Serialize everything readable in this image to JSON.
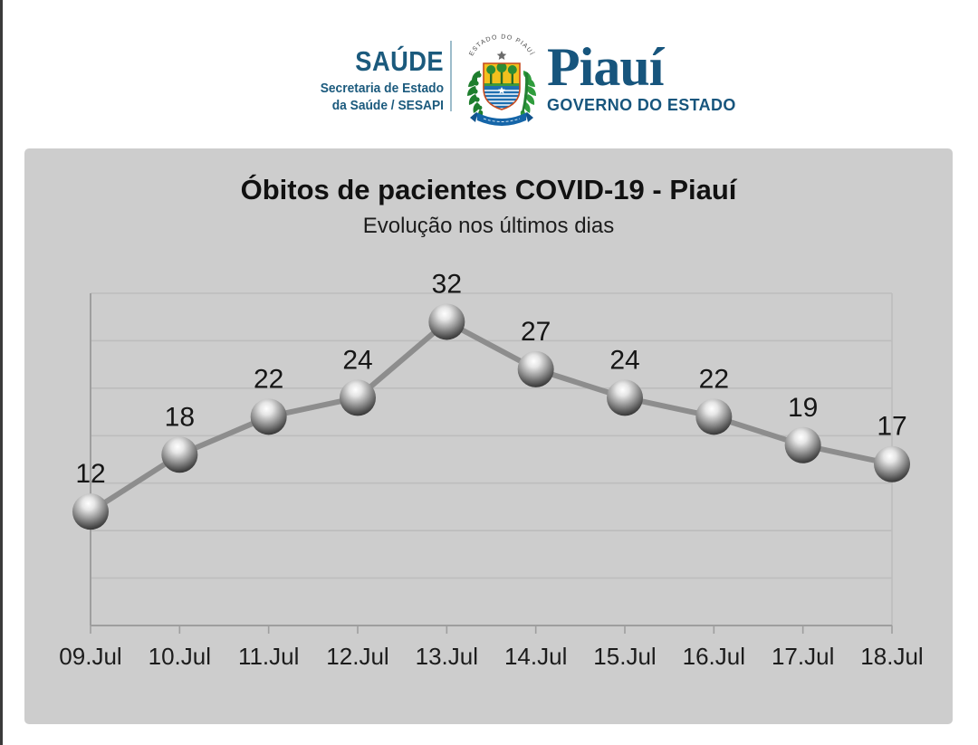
{
  "page": {
    "background": "#ffffff",
    "left_edge_color": "#3a3a3a",
    "panel_background": "#cdcdcd"
  },
  "header": {
    "saude": {
      "title": "SAÚDE",
      "line1": "Secretaria de Estado",
      "line2": "da Saúde / SESAPI",
      "color": "#1b5a7d"
    },
    "crest": {
      "arc_text": "ESTADO DO PIAUÍ"
    },
    "piaui": {
      "name": "Piauí",
      "subtitle": "GOVERNO DO ESTADO",
      "color": "#17557d"
    }
  },
  "chart_data": {
    "type": "line",
    "title": "Óbitos de pacientes COVID-19 - Piauí",
    "subtitle": "Evolução nos últimos dias",
    "categories": [
      "09.Jul",
      "10.Jul",
      "11.Jul",
      "12.Jul",
      "13.Jul",
      "14.Jul",
      "15.Jul",
      "16.Jul",
      "17.Jul",
      "18.Jul"
    ],
    "values": [
      12,
      18,
      22,
      24,
      32,
      27,
      24,
      22,
      19,
      17
    ],
    "xlabel": "",
    "ylabel": "",
    "ylim": [
      0,
      35
    ],
    "grid_step": 5,
    "grid": true,
    "legend": "none",
    "y_axis_labels": false,
    "marker": "3d-sphere",
    "colors": {
      "line": "#8d8d8d",
      "gridline": "#bdbdbd",
      "axis": "#9e9e9e",
      "label_text": "#161616",
      "tick_text": "#1c1c1c"
    }
  }
}
